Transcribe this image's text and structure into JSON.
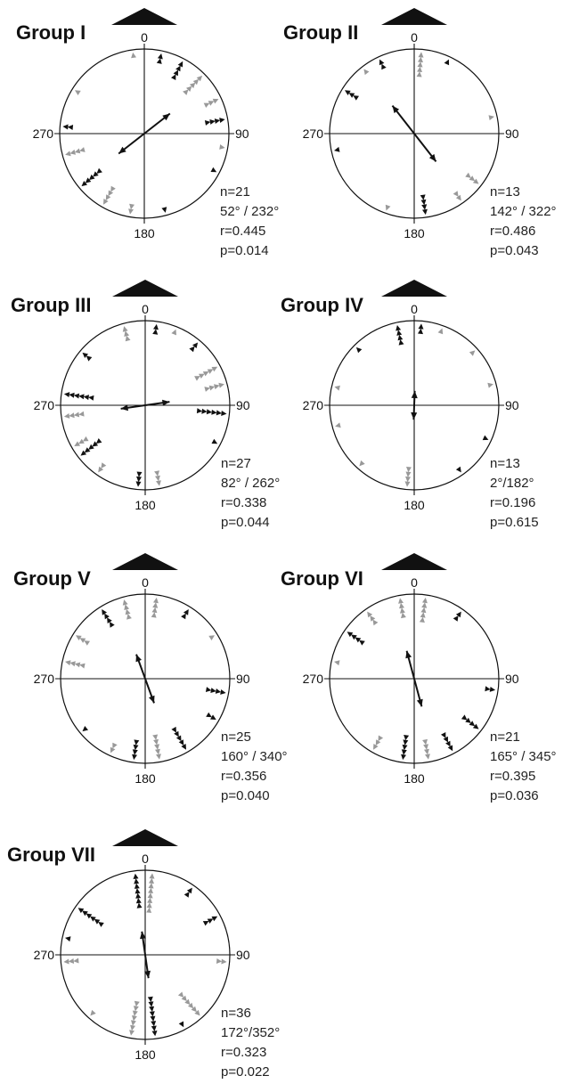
{
  "figure": {
    "colors": {
      "dark": "#111111",
      "grey": "#999999",
      "text": "#222222"
    },
    "icons": {
      "top_marker": "triangle-up",
      "data_marker": "triangle-head"
    }
  },
  "chart_data": [
    {
      "type": "circular",
      "title": "Group I",
      "angle_labels": [
        "0",
        "90",
        "180",
        "270"
      ],
      "stats": [
        "n=21",
        "52° / 232°",
        "r=0.445",
        "p=0.014"
      ],
      "mean_axis_deg": 52,
      "mean_r": 0.445,
      "points": [
        {
          "angle": 12,
          "n": 2,
          "color": "dark"
        },
        {
          "angle": 28,
          "n": 4,
          "color": "dark"
        },
        {
          "angle": 45,
          "n": 5,
          "color": "grey"
        },
        {
          "angle": 65,
          "n": 3,
          "color": "grey"
        },
        {
          "angle": 80,
          "n": 4,
          "color": "dark"
        },
        {
          "angle": 100,
          "n": 1,
          "color": "grey"
        },
        {
          "angle": 118,
          "n": 1,
          "color": "dark"
        },
        {
          "angle": 165,
          "n": 1,
          "color": "dark"
        },
        {
          "angle": 190,
          "n": 2,
          "color": "grey"
        },
        {
          "angle": 210,
          "n": 4,
          "color": "grey"
        },
        {
          "angle": 230,
          "n": 5,
          "color": "dark"
        },
        {
          "angle": 255,
          "n": 4,
          "color": "grey"
        },
        {
          "angle": 275,
          "n": 2,
          "color": "dark"
        },
        {
          "angle": 302,
          "n": 1,
          "color": "grey"
        },
        {
          "angle": 352,
          "n": 1,
          "color": "grey"
        }
      ]
    },
    {
      "type": "circular",
      "title": "Group II",
      "angle_labels": [
        "0",
        "90",
        "180",
        "270"
      ],
      "stats": [
        "n=13",
        "142° / 322°",
        "r=0.486",
        "p=0.043"
      ],
      "mean_axis_deg": 142,
      "mean_r": 0.486,
      "points": [
        {
          "angle": 5,
          "n": 5,
          "color": "grey"
        },
        {
          "angle": 25,
          "n": 1,
          "color": "dark"
        },
        {
          "angle": 78,
          "n": 1,
          "color": "grey"
        },
        {
          "angle": 128,
          "n": 3,
          "color": "grey"
        },
        {
          "angle": 145,
          "n": 2,
          "color": "grey"
        },
        {
          "angle": 172,
          "n": 4,
          "color": "dark"
        },
        {
          "angle": 200,
          "n": 1,
          "color": "grey"
        },
        {
          "angle": 258,
          "n": 1,
          "color": "dark"
        },
        {
          "angle": 302,
          "n": 3,
          "color": "dark"
        },
        {
          "angle": 322,
          "n": 1,
          "color": "grey"
        },
        {
          "angle": 335,
          "n": 2,
          "color": "dark"
        }
      ]
    },
    {
      "type": "circular",
      "title": "Group III",
      "angle_labels": [
        "0",
        "90",
        "180",
        "270"
      ],
      "stats": [
        "n=27",
        "82° / 262°",
        "r=0.338",
        "p=0.044"
      ],
      "mean_axis_deg": 82,
      "mean_r": 0.338,
      "points": [
        {
          "angle": 8,
          "n": 2,
          "color": "dark"
        },
        {
          "angle": 22,
          "n": 1,
          "color": "grey"
        },
        {
          "angle": 40,
          "n": 2,
          "color": "dark"
        },
        {
          "angle": 62,
          "n": 5,
          "color": "grey"
        },
        {
          "angle": 75,
          "n": 4,
          "color": "grey"
        },
        {
          "angle": 96,
          "n": 6,
          "color": "dark"
        },
        {
          "angle": 118,
          "n": 1,
          "color": "dark"
        },
        {
          "angle": 170,
          "n": 3,
          "color": "grey"
        },
        {
          "angle": 185,
          "n": 3,
          "color": "dark"
        },
        {
          "angle": 215,
          "n": 2,
          "color": "grey"
        },
        {
          "angle": 232,
          "n": 5,
          "color": "dark"
        },
        {
          "angle": 240,
          "n": 3,
          "color": "grey"
        },
        {
          "angle": 262,
          "n": 4,
          "color": "grey"
        },
        {
          "angle": 278,
          "n": 6,
          "color": "dark"
        },
        {
          "angle": 310,
          "n": 2,
          "color": "dark"
        },
        {
          "angle": 345,
          "n": 3,
          "color": "grey"
        }
      ]
    },
    {
      "type": "circular",
      "title": "Group IV",
      "angle_labels": [
        "0",
        "90",
        "180",
        "270"
      ],
      "stats": [
        "n=13",
        "2°/182°",
        "r=0.196",
        "p=0.615"
      ],
      "mean_axis_deg": 2,
      "mean_r": 0.196,
      "points": [
        {
          "angle": 5,
          "n": 2,
          "color": "dark"
        },
        {
          "angle": 20,
          "n": 1,
          "color": "grey"
        },
        {
          "angle": 48,
          "n": 1,
          "color": "grey"
        },
        {
          "angle": 75,
          "n": 1,
          "color": "grey"
        },
        {
          "angle": 115,
          "n": 1,
          "color": "dark"
        },
        {
          "angle": 145,
          "n": 1,
          "color": "dark"
        },
        {
          "angle": 185,
          "n": 4,
          "color": "grey"
        },
        {
          "angle": 222,
          "n": 1,
          "color": "grey"
        },
        {
          "angle": 255,
          "n": 1,
          "color": "grey"
        },
        {
          "angle": 283,
          "n": 1,
          "color": "grey"
        },
        {
          "angle": 315,
          "n": 1,
          "color": "dark"
        },
        {
          "angle": 348,
          "n": 4,
          "color": "dark"
        }
      ]
    },
    {
      "type": "circular",
      "title": "Group V",
      "angle_labels": [
        "0",
        "90",
        "180",
        "270"
      ],
      "stats": [
        "n=25",
        "160° / 340°",
        "r=0.356",
        "p=0.040"
      ],
      "mean_axis_deg": 160,
      "mean_r": 0.356,
      "points": [
        {
          "angle": 8,
          "n": 4,
          "color": "grey"
        },
        {
          "angle": 32,
          "n": 2,
          "color": "dark"
        },
        {
          "angle": 58,
          "n": 1,
          "color": "grey"
        },
        {
          "angle": 100,
          "n": 4,
          "color": "dark"
        },
        {
          "angle": 120,
          "n": 2,
          "color": "dark"
        },
        {
          "angle": 150,
          "n": 5,
          "color": "dark"
        },
        {
          "angle": 170,
          "n": 5,
          "color": "grey"
        },
        {
          "angle": 188,
          "n": 4,
          "color": "dark"
        },
        {
          "angle": 205,
          "n": 2,
          "color": "grey"
        },
        {
          "angle": 230,
          "n": 1,
          "color": "dark"
        },
        {
          "angle": 282,
          "n": 4,
          "color": "grey"
        },
        {
          "angle": 302,
          "n": 3,
          "color": "grey"
        },
        {
          "angle": 328,
          "n": 4,
          "color": "dark"
        },
        {
          "angle": 345,
          "n": 4,
          "color": "grey"
        }
      ]
    },
    {
      "type": "circular",
      "title": "Group VI",
      "angle_labels": [
        "0",
        "90",
        "180",
        "270"
      ],
      "stats": [
        "n=21",
        "165° / 345°",
        "r=0.395",
        "p=0.036"
      ],
      "mean_axis_deg": 165,
      "mean_r": 0.395,
      "points": [
        {
          "angle": 8,
          "n": 5,
          "color": "grey"
        },
        {
          "angle": 35,
          "n": 2,
          "color": "dark"
        },
        {
          "angle": 98,
          "n": 2,
          "color": "dark"
        },
        {
          "angle": 128,
          "n": 4,
          "color": "dark"
        },
        {
          "angle": 152,
          "n": 4,
          "color": "dark"
        },
        {
          "angle": 170,
          "n": 4,
          "color": "grey"
        },
        {
          "angle": 188,
          "n": 5,
          "color": "dark"
        },
        {
          "angle": 210,
          "n": 3,
          "color": "grey"
        },
        {
          "angle": 282,
          "n": 1,
          "color": "grey"
        },
        {
          "angle": 305,
          "n": 4,
          "color": "dark"
        },
        {
          "angle": 325,
          "n": 3,
          "color": "grey"
        },
        {
          "angle": 350,
          "n": 4,
          "color": "grey"
        }
      ]
    },
    {
      "type": "circular",
      "title": "Group VII",
      "angle_labels": [
        "0",
        "90",
        "180",
        "270"
      ],
      "stats": [
        "n=36",
        "172°/352°",
        "r=0.323",
        "p=0.022"
      ],
      "mean_axis_deg": 172,
      "mean_r": 0.323,
      "points": [
        {
          "angle": 5,
          "n": 8,
          "color": "grey"
        },
        {
          "angle": 35,
          "n": 2,
          "color": "dark"
        },
        {
          "angle": 62,
          "n": 3,
          "color": "dark"
        },
        {
          "angle": 95,
          "n": 2,
          "color": "grey"
        },
        {
          "angle": 138,
          "n": 6,
          "color": "grey"
        },
        {
          "angle": 152,
          "n": 1,
          "color": "dark"
        },
        {
          "angle": 173,
          "n": 8,
          "color": "dark"
        },
        {
          "angle": 190,
          "n": 7,
          "color": "grey"
        },
        {
          "angle": 222,
          "n": 1,
          "color": "grey"
        },
        {
          "angle": 265,
          "n": 3,
          "color": "grey"
        },
        {
          "angle": 282,
          "n": 1,
          "color": "dark"
        },
        {
          "angle": 305,
          "n": 6,
          "color": "dark"
        },
        {
          "angle": 353,
          "n": 7,
          "color": "dark"
        }
      ]
    }
  ]
}
